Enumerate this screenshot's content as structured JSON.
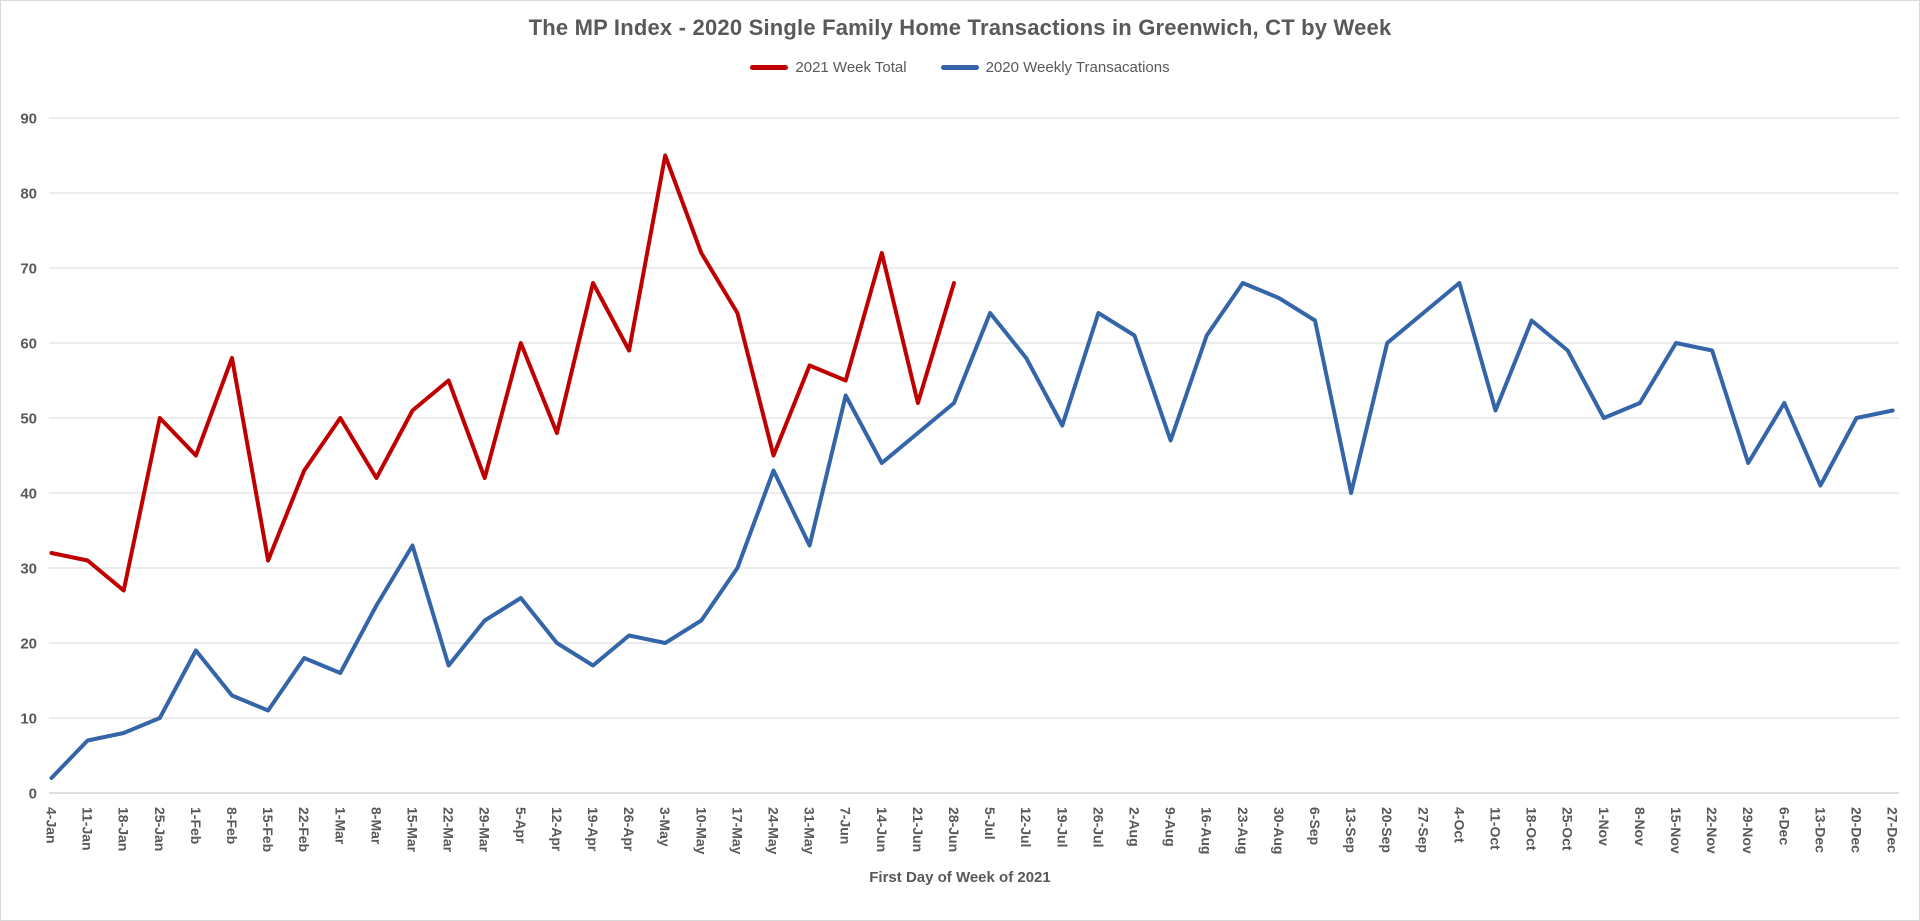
{
  "title": "The MP Index - 2020 Single Family Home Transactions in Greenwich, CT by Week",
  "xaxis_title": "First Day of Week of 2021",
  "legend": {
    "items": [
      {
        "label": "2021 Week Total",
        "color": "#c00000"
      },
      {
        "label": "2020 Weekly Transacations",
        "color": "#3565a9"
      }
    ]
  },
  "colors": {
    "red_series": "#c00000",
    "blue_series": "#3565a9",
    "gridline": "#d9d9d9",
    "axis_line": "#bfbfbf",
    "text": "#595959"
  },
  "chart_data": {
    "type": "line",
    "title": "The MP Index - 2020 Single Family Home Transactions in Greenwich, CT by Week",
    "xlabel": "First Day of Week of 2021",
    "ylabel": "",
    "ylim": [
      0,
      90
    ],
    "ytick_step": 10,
    "ytick_labels": [
      "0",
      "10",
      "20",
      "30",
      "40",
      "50",
      "60",
      "70",
      "80",
      "90"
    ],
    "grid": true,
    "legend_position": "top-center",
    "categories": [
      "4-Jan",
      "11-Jan",
      "18-Jan",
      "25-Jan",
      "1-Feb",
      "8-Feb",
      "15-Feb",
      "22-Feb",
      "1-Mar",
      "8-Mar",
      "15-Mar",
      "22-Mar",
      "29-Mar",
      "5-Apr",
      "12-Apr",
      "19-Apr",
      "26-Apr",
      "3-May",
      "10-May",
      "17-May",
      "24-May",
      "31-May",
      "7-Jun",
      "14-Jun",
      "21-Jun",
      "28-Jun",
      "5-Jul",
      "12-Jul",
      "19-Jul",
      "26-Jul",
      "2-Aug",
      "9-Aug",
      "16-Aug",
      "23-Aug",
      "30-Aug",
      "6-Sep",
      "13-Sep",
      "20-Sep",
      "27-Sep",
      "4-Oct",
      "11-Oct",
      "18-Oct",
      "25-Oct",
      "1-Nov",
      "8-Nov",
      "15-Nov",
      "22-Nov",
      "29-Nov",
      "6-Dec",
      "13-Dec",
      "20-Dec",
      "27-Dec"
    ],
    "series": [
      {
        "name": "2021 Week Total",
        "color": "#c00000",
        "values": [
          32,
          31,
          27,
          50,
          45,
          58,
          31,
          43,
          50,
          42,
          51,
          55,
          42,
          60,
          48,
          68,
          59,
          85,
          72,
          64,
          45,
          57,
          55,
          72,
          52,
          68
        ]
      },
      {
        "name": "2020 Weekly Transacations",
        "color": "#3565a9",
        "values": [
          2,
          7,
          8,
          10,
          19,
          13,
          11,
          18,
          16,
          25,
          33,
          17,
          23,
          26,
          20,
          17,
          21,
          20,
          23,
          30,
          43,
          33,
          53,
          44,
          48,
          52,
          64,
          58,
          49,
          64,
          61,
          47,
          61,
          68,
          66,
          63,
          40,
          60,
          64,
          68,
          51,
          63,
          59,
          50,
          52,
          60,
          59,
          44,
          52,
          41,
          50,
          51
        ]
      }
    ]
  }
}
